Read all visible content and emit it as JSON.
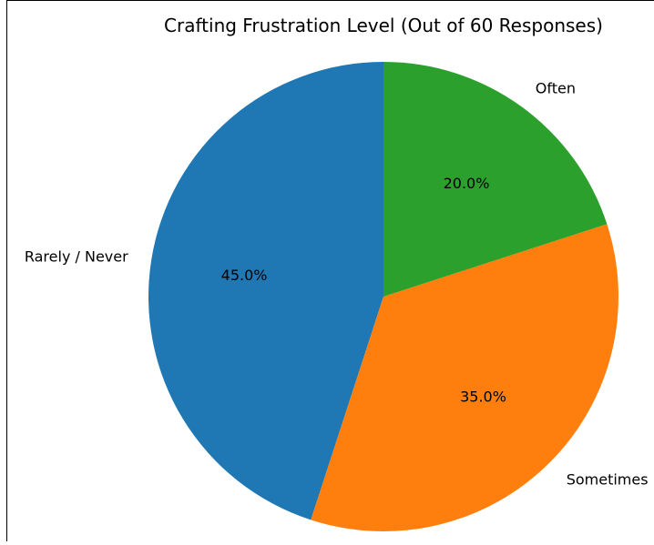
{
  "chart_data": {
    "type": "pie",
    "title": "Crafting Frustration Level (Out of 60 Responses)",
    "start_angle_deg": 90,
    "direction": "counterclockwise",
    "slices": [
      {
        "label": "Rarely / Never",
        "value": 45.0,
        "pct_label": "45.0%",
        "color": "#1f77b4"
      },
      {
        "label": "Sometimes",
        "value": 35.0,
        "pct_label": "35.0%",
        "color": "#ff7f0e"
      },
      {
        "label": "Often",
        "value": 20.0,
        "pct_label": "20.0%",
        "color": "#2ca02c"
      }
    ]
  }
}
